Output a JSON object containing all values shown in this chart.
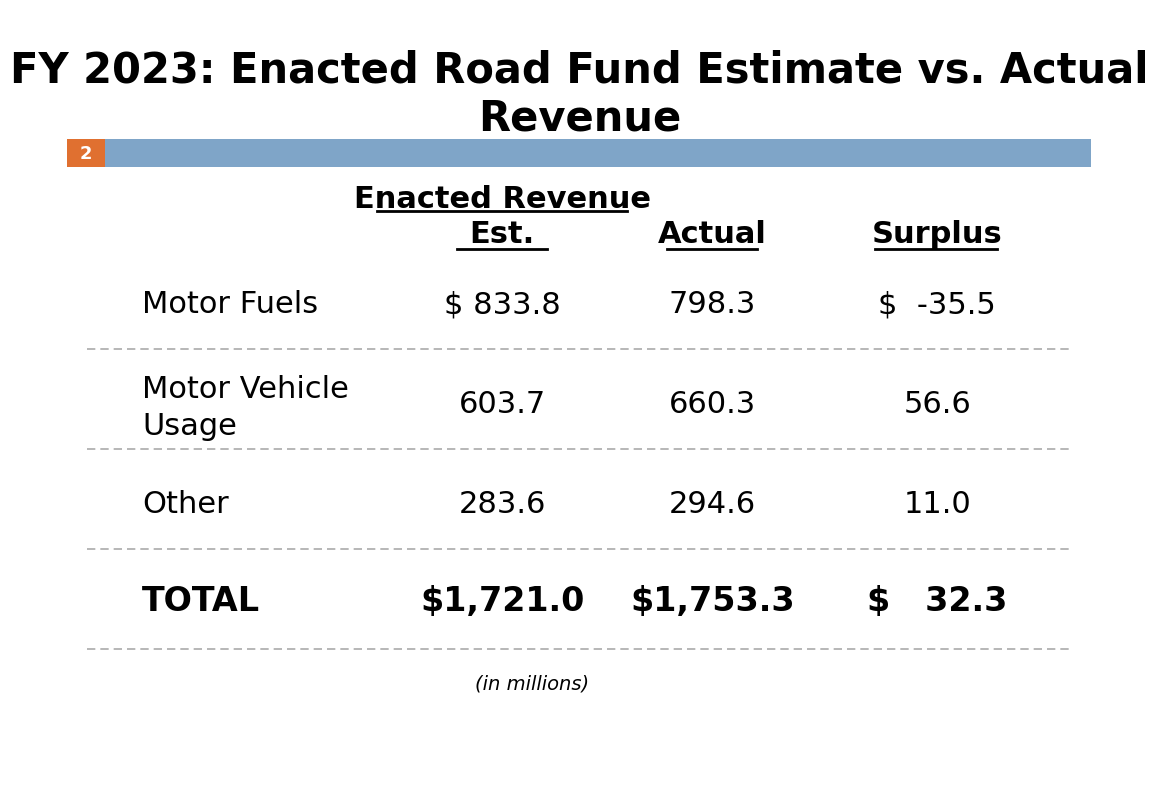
{
  "title_line1": "FY 2023: Enacted Road Fund Estimate vs. Actual",
  "title_line2": "Revenue",
  "slide_number": "2",
  "header_label": "Enacted Revenue",
  "col_headers": [
    "Est.",
    "Actual",
    "Surplus"
  ],
  "rows": [
    {
      "label": "Motor Fuels",
      "label2": "",
      "est": "$ 833.8",
      "actual": "798.3",
      "surplus": "$  −35.5",
      "is_total": false,
      "two_line": false
    },
    {
      "label": "Motor Vehicle",
      "label2": "Usage",
      "est": "603.7",
      "actual": "660.3",
      "surplus": "56.6",
      "is_total": false,
      "two_line": true
    },
    {
      "label": "Other",
      "label2": "",
      "est": "283.6",
      "actual": "294.6",
      "surplus": "11.0",
      "is_total": false,
      "two_line": false
    },
    {
      "label": "TOTAL",
      "label2": "",
      "est": "$1,721.0",
      "actual": "$1,753.3",
      "surplus": "$   32.3",
      "is_total": true,
      "two_line": false
    }
  ],
  "footnote": "(in millions)",
  "bg_color": "#ffffff",
  "header_bar_color": "#7fa5c8",
  "slide_num_bg": "#e07030",
  "slide_num_color": "#ffffff",
  "title_fontsize": 30,
  "header_fontsize": 22,
  "col_header_fontsize": 22,
  "row_fontsize": 22,
  "total_fontsize": 24,
  "footnote_fontsize": 14
}
